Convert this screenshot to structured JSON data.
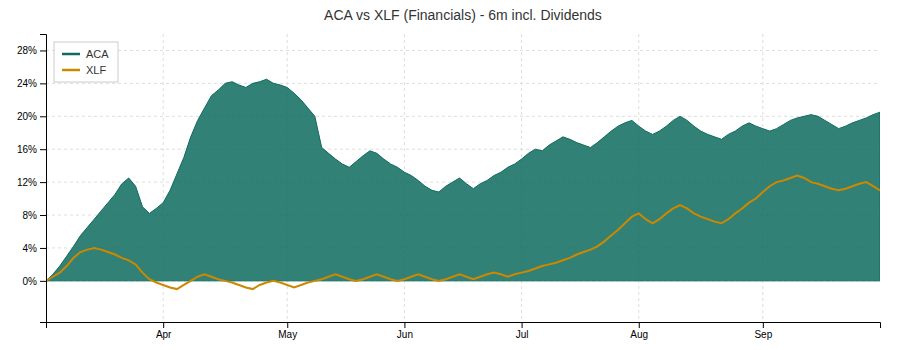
{
  "chart_data": {
    "type": "line",
    "title": "ACA vs XLF (Financials) - 6m incl. Dividends",
    "categories": [
      null,
      null,
      null,
      null,
      null,
      null,
      null,
      null,
      null,
      null,
      null,
      null,
      null,
      null,
      null,
      null,
      null,
      "Apr",
      null,
      null,
      null,
      null,
      null,
      null,
      null,
      null,
      null,
      null,
      null,
      null,
      null,
      null,
      null,
      null,
      null,
      "May",
      null,
      null,
      null,
      null,
      null,
      null,
      null,
      null,
      null,
      null,
      null,
      null,
      null,
      null,
      null,
      null,
      "Jun",
      null,
      null,
      null,
      null,
      null,
      null,
      null,
      null,
      null,
      null,
      null,
      null,
      null,
      null,
      null,
      null,
      "Jul",
      null,
      null,
      null,
      null,
      null,
      null,
      null,
      null,
      null,
      null,
      null,
      null,
      null,
      null,
      null,
      null,
      "Aug",
      null,
      null,
      null,
      null,
      null,
      null,
      null,
      null,
      null,
      null,
      null,
      null,
      null,
      null,
      null,
      null,
      null,
      "Sep",
      null,
      null,
      null,
      null,
      null,
      null,
      null,
      null,
      null,
      null,
      null,
      null,
      null,
      null,
      null,
      null,
      null
    ],
    "series": [
      {
        "name": "ACA",
        "type": "area",
        "color": "#0e6b5e",
        "values": [
          0.0,
          0.008,
          0.018,
          0.03,
          0.042,
          0.055,
          0.065,
          0.075,
          0.085,
          0.095,
          0.105,
          0.118,
          0.125,
          0.115,
          0.09,
          0.082,
          0.088,
          0.095,
          0.11,
          0.13,
          0.15,
          0.175,
          0.195,
          0.21,
          0.225,
          0.232,
          0.24,
          0.242,
          0.238,
          0.235,
          0.24,
          0.242,
          0.245,
          0.24,
          0.238,
          0.235,
          0.228,
          0.22,
          0.21,
          0.2,
          0.162,
          0.155,
          0.148,
          0.142,
          0.138,
          0.145,
          0.152,
          0.158,
          0.155,
          0.148,
          0.142,
          0.138,
          0.132,
          0.128,
          0.122,
          0.115,
          0.11,
          0.108,
          0.115,
          0.12,
          0.125,
          0.118,
          0.112,
          0.118,
          0.122,
          0.128,
          0.132,
          0.138,
          0.142,
          0.148,
          0.155,
          0.16,
          0.158,
          0.165,
          0.17,
          0.175,
          0.172,
          0.168,
          0.165,
          0.162,
          0.168,
          0.175,
          0.182,
          0.188,
          0.192,
          0.195,
          0.188,
          0.182,
          0.178,
          0.182,
          0.188,
          0.195,
          0.2,
          0.195,
          0.188,
          0.182,
          0.178,
          0.175,
          0.172,
          0.178,
          0.182,
          0.188,
          0.192,
          0.188,
          0.185,
          0.182,
          0.185,
          0.19,
          0.195,
          0.198,
          0.2,
          0.202,
          0.2,
          0.195,
          0.19,
          0.185,
          0.188,
          0.192,
          0.195,
          0.198,
          0.202,
          0.205
        ]
      },
      {
        "name": "XLF",
        "type": "line",
        "color": "#cc8800",
        "values": [
          0.0,
          0.005,
          0.01,
          0.018,
          0.028,
          0.035,
          0.038,
          0.04,
          0.038,
          0.035,
          0.032,
          0.028,
          0.025,
          0.02,
          0.01,
          0.002,
          -0.002,
          -0.005,
          -0.008,
          -0.01,
          -0.005,
          0.0,
          0.005,
          0.008,
          0.005,
          0.002,
          0.0,
          -0.002,
          -0.005,
          -0.008,
          -0.01,
          -0.005,
          -0.002,
          0.0,
          -0.002,
          -0.005,
          -0.008,
          -0.005,
          -0.002,
          0.0,
          0.002,
          0.005,
          0.008,
          0.005,
          0.002,
          0.0,
          0.002,
          0.005,
          0.008,
          0.005,
          0.002,
          0.0,
          0.002,
          0.005,
          0.008,
          0.005,
          0.002,
          0.0,
          0.002,
          0.005,
          0.008,
          0.005,
          0.002,
          0.005,
          0.008,
          0.01,
          0.008,
          0.005,
          0.008,
          0.01,
          0.012,
          0.015,
          0.018,
          0.02,
          0.022,
          0.025,
          0.028,
          0.032,
          0.035,
          0.038,
          0.042,
          0.048,
          0.055,
          0.062,
          0.07,
          0.078,
          0.082,
          0.075,
          0.07,
          0.075,
          0.082,
          0.088,
          0.092,
          0.088,
          0.082,
          0.078,
          0.075,
          0.072,
          0.07,
          0.075,
          0.082,
          0.088,
          0.095,
          0.1,
          0.108,
          0.115,
          0.12,
          0.122,
          0.125,
          0.128,
          0.125,
          0.12,
          0.118,
          0.115,
          0.112,
          0.11,
          0.112,
          0.115,
          0.118,
          0.12,
          0.115,
          0.11
        ]
      }
    ],
    "ylim": [
      -0.05,
      0.3
    ],
    "yticks": [
      {
        "value": 0.0,
        "label": "0%"
      },
      {
        "value": 0.04,
        "label": "4%"
      },
      {
        "value": 0.08,
        "label": "8%"
      },
      {
        "value": 0.12,
        "label": "12%"
      },
      {
        "value": 0.16,
        "label": "16%"
      },
      {
        "value": 0.2,
        "label": "20%"
      },
      {
        "value": 0.24,
        "label": "24%"
      },
      {
        "value": 0.28,
        "label": "28%"
      }
    ],
    "grid": true,
    "legend": "upper left"
  }
}
